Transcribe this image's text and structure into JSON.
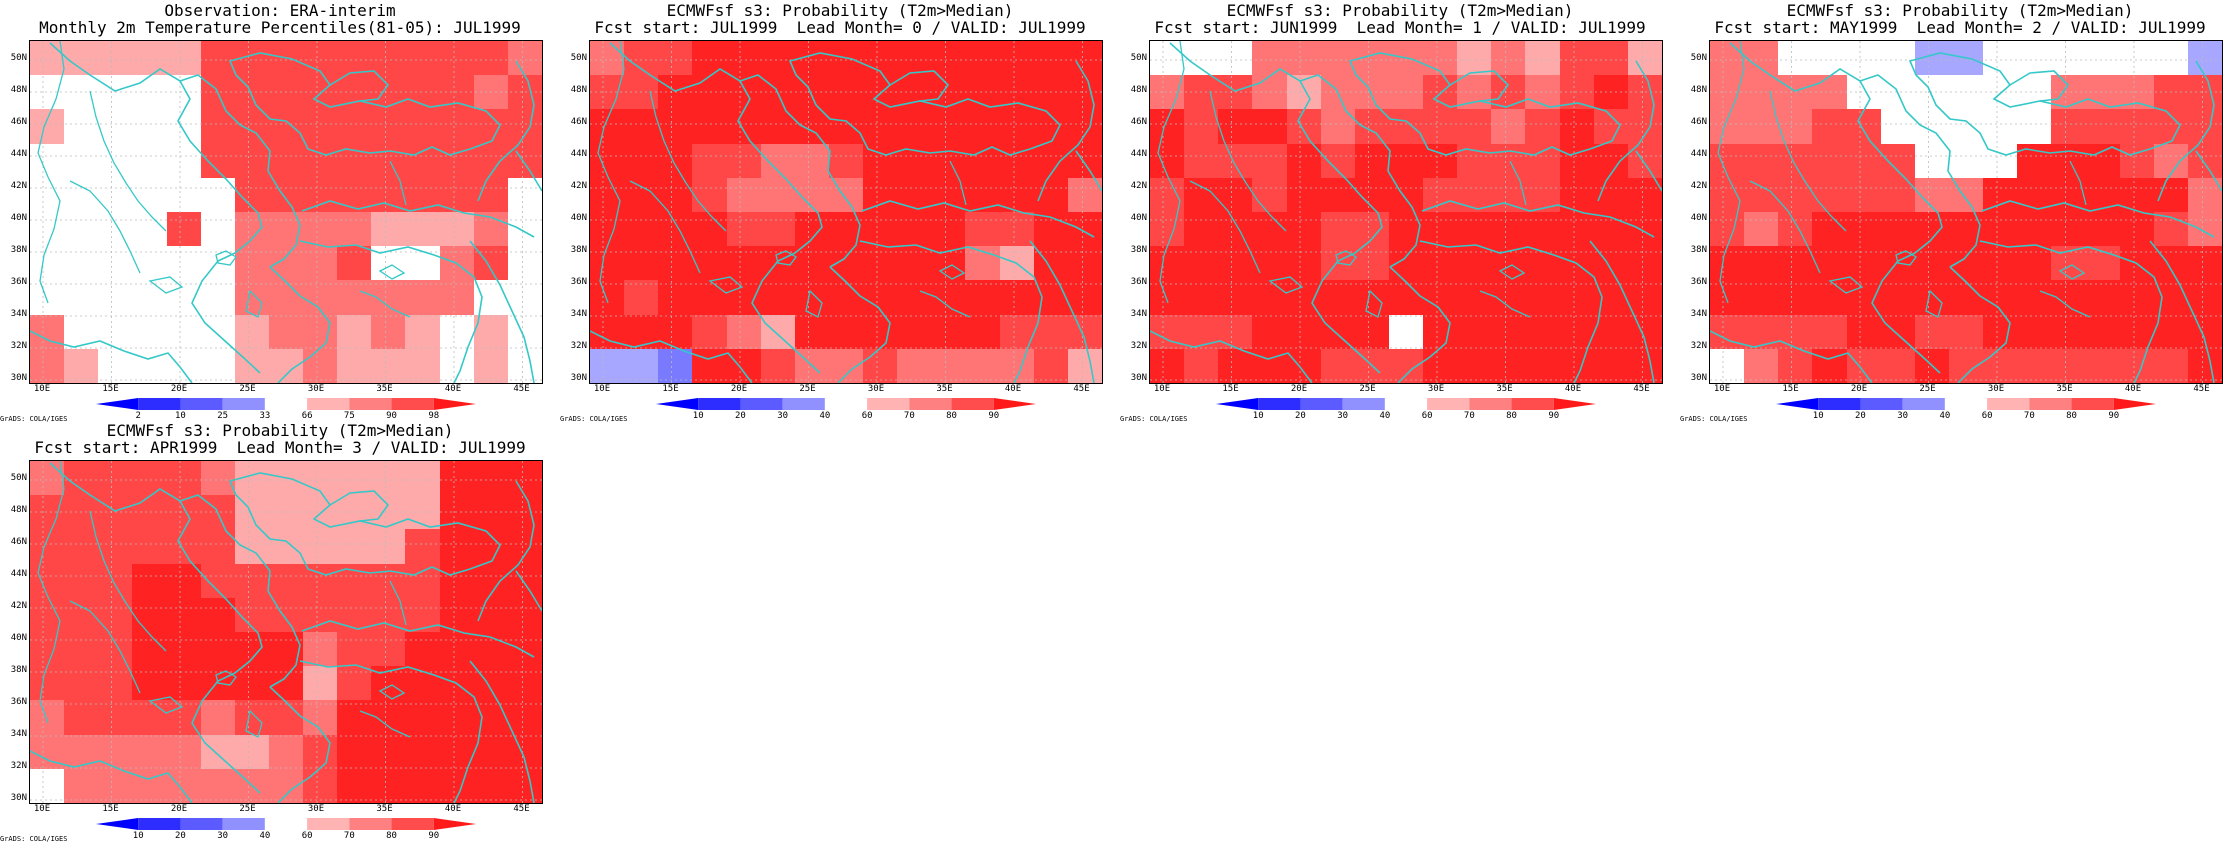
{
  "colors": {
    "r98": "#ff0000",
    "r90": "#ff2222",
    "r80": "#ff4747",
    "r70": "#ff7575",
    "r60": "#ffaaaa",
    "w": "#ffffff",
    "b40": "#a7a7ff",
    "b30": "#7a7aff",
    "b20": "#4d4dff",
    "b10": "#1f1fff",
    "coast": "#35c8c8",
    "grid": "#cccccc"
  },
  "x_ticks": [
    "10E",
    "15E",
    "20E",
    "25E",
    "30E",
    "35E",
    "40E",
    "45E"
  ],
  "y_ticks": [
    "50N",
    "48N",
    "46N",
    "44N",
    "42N",
    "40N",
    "38N",
    "36N",
    "34N",
    "32N",
    "30N"
  ],
  "grads_label": "GrADS: COLA/IGES",
  "panels": [
    {
      "title1": "Observation: ERA-interim",
      "title2": "Monthly 2m Temperature Percentiles(81-05): JUL1999",
      "colorbar": [
        "2",
        "10",
        "25",
        "33",
        "66",
        "75",
        "90",
        "98"
      ],
      "grid": [
        "r60 r60 r60 r60 r60 r80 r80 r80 r80 r80 r80 r80 r80 r80 r70",
        "w w w w w r80 r80 r80 r80 r80 r80 r80 r80 r70 r80",
        "r60 w w w w r80 r80 r80 r80 r80 r80 r80 r80 r80 r80",
        "w w w w w r80 r80 r80 r80 r80 r80 r80 r80 r80 r80",
        "w w w w w w r80 r80 r80 r80 r80 r80 r80 r80 w",
        "w w w w r80 w r70 r70 r70 r70 r60 r60 r60 r70 w",
        "w w w w w w r70 r70 r70 r80 w w r70 r80 w",
        "w w w w w w r70 r70 r70 r70 r70 r70 r70 w w",
        "r70 w w w w w r60 r70 r70 r60 r70 r60 w r60 w",
        "r70 r60 w w w w r60 r60 r70 r60 r60 r60 w r60 w"
      ]
    },
    {
      "title1": "ECMWFsf s3: Probability (T2m>Median)",
      "title2": "Fcst start: JUL1999  Lead Month= 0 / VALID: JUL1999",
      "colorbar": [
        "10",
        "20",
        "30",
        "40",
        "60",
        "70",
        "80",
        "90"
      ],
      "grid": [
        "r70 r80 r80 r90 r90 r90 r90 r90 r90 r90 r90 r90 r90 r90 r90",
        "r80 r80 r90 r90 r90 r90 r90 r90 r90 r90 r90 r90 r90 r90 r90",
        "r90 r90 r90 r90 r90 r90 r90 r90 r90 r90 r90 r90 r90 r90 r90",
        "r90 r90 r90 r80 r80 r70 r70 r80 r90 r90 r90 r90 r90 r90 r90",
        "r90 r90 r90 r80 r70 r70 r70 r70 r90 r90 r90 r90 r90 r90 r70",
        "r90 r90 r90 r90 r80 r80 r90 r90 r90 r90 r90 r80 r80 r90 r90",
        "r90 r90 r90 r90 r90 r90 r90 r90 r90 r90 r90 r70 r60 r90 r90",
        "r90 r80 r90 r90 r90 r90 r90 r90 r90 r90 r90 r90 r90 r90 r90",
        "r90 r90 r90 r80 r70 r60 r90 r90 r90 r90 r90 r90 r80 r80 r80",
        "b40 b40 b30 r90 r90 r80 r70 r70 r80 r70 r70 r70 r70 r80 r60"
      ]
    },
    {
      "title1": "ECMWFsf s3: Probability (T2m>Median)",
      "title2": "Fcst start: JUN1999  Lead Month= 1 / VALID: JUL1999",
      "colorbar": [
        "10",
        "20",
        "30",
        "40",
        "60",
        "70",
        "80",
        "90"
      ],
      "grid": [
        "w w w r70 r70 r70 r70 r70 r70 r60 r70 r60 r80 r80 r60",
        "r70 r80 r80 r70 r60 r70 r70 r70 r80 r70 r80 r70 r80 r90 r80",
        "r90 r80 r90 r90 r80 r70 r80 r80 r80 r80 r70 r80 r90 r80 r80",
        "r90 r80 r80 r80 r90 r80 r90 r90 r90 r80 r80 r80 r90 r90 r80",
        "r80 r90 r90 r80 r90 r90 r90 r90 r80 r80 r80 r80 r90 r90 r90",
        "r80 r90 r90 r90 r90 r80 r80 r90 r90 r90 r90 r90 r90 r90 r90",
        "r90 r90 r90 r90 r90 r80 r80 r90 r90 r90 r90 r90 r90 r90 r90",
        "r90 r90 r90 r90 r90 r90 r90 r90 r90 r90 r90 r90 r90 r90 r90",
        "r80 r80 r80 r90 r90 r90 r90 w r90 r90 r90 r90 r90 r90 r90",
        "r90 r80 r90 r90 r90 r80 r80 r80 r90 r90 r90 r90 r90 r90 r90"
      ]
    },
    {
      "title1": "ECMWFsf s3: Probability (T2m>Median)",
      "title2": "Fcst start: MAY1999  Lead Month= 2 / VALID: JUL1999",
      "colorbar": [
        "10",
        "20",
        "30",
        "40",
        "60",
        "70",
        "80",
        "90"
      ],
      "grid": [
        "r70 r70 w w w w b40 b40 w w w w w w b40",
        "r70 r70 r70 r70 w w w w w w r70 r70 r70 r80 r80",
        "r70 r70 r70 r80 r80 w w w w w r80 r80 r80 r80 r80",
        "r80 r80 r80 r80 r80 r80 w w w r90 r90 r90 r80 r70 r80",
        "r80 r80 r80 r80 r80 r80 r70 r70 r90 r90 r90 r90 r90 r90 r70",
        "r80 r70 r80 r90 r90 r90 r90 r90 r90 r90 r90 r90 r90 r80 r70",
        "r90 r90 r90 r90 r90 r90 r90 r90 r90 r90 r80 r80 r90 r90 r90",
        "r90 r90 r90 r90 r90 r90 r90 r90 r90 r90 r90 r90 r90 r90 r90",
        "r80 r80 r80 r80 r90 r90 r80 r80 r90 r90 r90 r90 r90 r90 r90",
        "w r70 r80 r90 r80 r80 r90 r80 r80 r80 r80 r80 r80 r80 r90"
      ]
    },
    {
      "title1": "ECMWFsf s3: Probability (T2m>Median)",
      "title2": "Fcst start: APR1999  Lead Month= 3 / VALID: JUL1999",
      "colorbar": [
        "10",
        "20",
        "30",
        "40",
        "60",
        "70",
        "80",
        "90"
      ],
      "grid": [
        "r70 r80 r80 r80 r80 r70 r60 r60 r60 r60 r60 r60 r90 r90 r90",
        "r80 r80 r80 r80 r80 r80 r60 r60 r60 r60 r60 r60 r90 r90 r90",
        "r80 r80 r80 r80 r80 r80 r60 r60 r60 r60 r60 r80 r90 r90 r90",
        "r80 r80 r80 r90 r90 r80 r80 r80 r80 r80 r80 r80 r90 r90 r90",
        "r80 r80 r80 r90 r90 r90 r80 r80 r80 r80 r80 r80 r90 r90 r90",
        "r80 r80 r80 r90 r90 r90 r90 r90 r70 r80 r80 r90 r90 r90 r90",
        "r80 r80 r80 r90 r90 r90 r90 r90 r60 r80 r90 r90 r90 r90 r90",
        "r70 r80 r80 r80 r80 r70 r80 r80 r70 r90 r90 r90 r90 r90 r90",
        "r70 r70 r70 r70 r70 r60 r60 r70 r80 r90 r90 r90 r90 r90 r90",
        "w r70 r70 r70 r70 r70 r70 r70 r80 r90 r90 r90 r90 r90 r90"
      ]
    }
  ]
}
